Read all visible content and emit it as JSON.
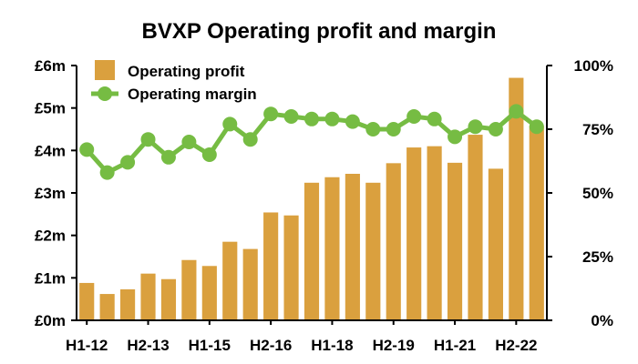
{
  "chart_data": {
    "type": "bar",
    "title": "BVXP Operating profit and margin",
    "categories": [
      "H1-12",
      "H2-12",
      "H1-13",
      "H2-13",
      "H1-14",
      "H2-14",
      "H1-15",
      "H2-15",
      "H1-16",
      "H2-16",
      "H1-17",
      "H2-17",
      "H1-18",
      "H2-18",
      "H1-19",
      "H2-19",
      "H1-20",
      "H2-20",
      "H1-21",
      "H2-21",
      "H1-22",
      "H2-22",
      "H1-23"
    ],
    "x_tick_labels": [
      "H1-12",
      "H2-13",
      "H1-15",
      "H2-16",
      "H1-18",
      "H2-19",
      "H1-21",
      "H2-22"
    ],
    "series": [
      {
        "name": "Operating profit",
        "type": "bar",
        "axis": "left",
        "color": "#DAA03E",
        "values": [
          0.88,
          0.62,
          0.73,
          1.1,
          0.97,
          1.42,
          1.28,
          1.85,
          1.68,
          2.54,
          2.47,
          3.24,
          3.37,
          3.45,
          3.24,
          3.7,
          4.07,
          4.1,
          3.71,
          4.37,
          3.57,
          5.71,
          4.58
        ]
      },
      {
        "name": "Operating margin",
        "type": "line",
        "axis": "right",
        "color": "#76BC43",
        "values": [
          67,
          58,
          62,
          71,
          64,
          70,
          65,
          77,
          71,
          81,
          80,
          79,
          79,
          78,
          75,
          75,
          80,
          79,
          72,
          76,
          75,
          82,
          76
        ]
      }
    ],
    "y_left": {
      "min": 0,
      "max": 6,
      "ticks": [
        "£0m",
        "£1m",
        "£2m",
        "£3m",
        "£4m",
        "£5m",
        "£6m"
      ]
    },
    "y_right": {
      "min": 0,
      "max": 100,
      "ticks": [
        "0%",
        "25%",
        "50%",
        "75%",
        "100%"
      ]
    },
    "legend_position": "top-left",
    "grid": false
  }
}
